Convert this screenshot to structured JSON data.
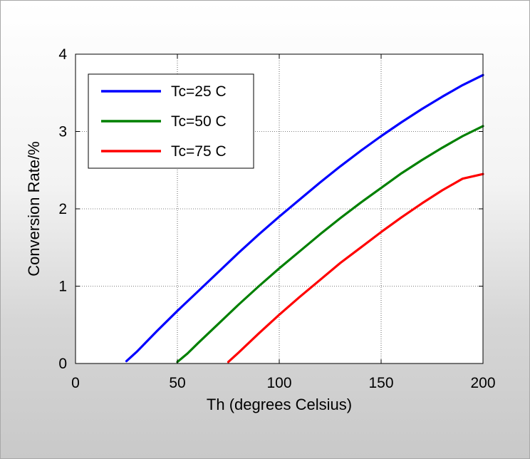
{
  "chart_data": {
    "type": "line",
    "xlabel": "Th (degrees Celsius)",
    "ylabel": "Conversion Rate/%",
    "xlim": [
      0,
      200
    ],
    "ylim": [
      0,
      4
    ],
    "xticks": [
      "0",
      "50",
      "100",
      "150",
      "200"
    ],
    "yticks": [
      "0",
      "1",
      "2",
      "3",
      "4"
    ],
    "grid": true,
    "legend_position": "top-left",
    "series": [
      {
        "name": "Tc=25 C",
        "color": "#0000ff",
        "x": [
          25,
          30,
          40,
          50,
          60,
          70,
          80,
          90,
          100,
          110,
          120,
          130,
          140,
          150,
          160,
          170,
          180,
          190,
          200
        ],
        "y": [
          0.03,
          0.15,
          0.42,
          0.68,
          0.93,
          1.18,
          1.43,
          1.67,
          1.9,
          2.12,
          2.34,
          2.55,
          2.75,
          2.94,
          3.12,
          3.29,
          3.45,
          3.6,
          3.73
        ]
      },
      {
        "name": "Tc=50 C",
        "color": "#008000",
        "x": [
          50,
          55,
          60,
          70,
          80,
          90,
          100,
          110,
          120,
          130,
          140,
          150,
          160,
          170,
          180,
          190,
          200
        ],
        "y": [
          0.02,
          0.13,
          0.26,
          0.51,
          0.76,
          1.0,
          1.23,
          1.45,
          1.67,
          1.88,
          2.08,
          2.27,
          2.46,
          2.63,
          2.79,
          2.94,
          3.07
        ]
      },
      {
        "name": "Tc=75 C",
        "color": "#ff0000",
        "x": [
          75,
          80,
          90,
          100,
          110,
          120,
          130,
          140,
          150,
          160,
          170,
          180,
          190,
          200
        ],
        "y": [
          0.02,
          0.14,
          0.39,
          0.63,
          0.86,
          1.08,
          1.3,
          1.5,
          1.7,
          1.89,
          2.07,
          2.24,
          2.39,
          2.45
        ]
      }
    ]
  }
}
